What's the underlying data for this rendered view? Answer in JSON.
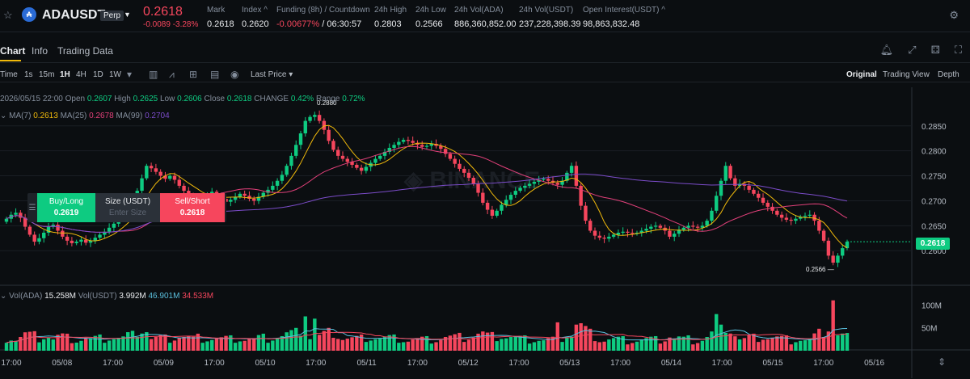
{
  "header": {
    "symbol": "ADAUSDT",
    "badge": "Perp",
    "price": "0.2618",
    "change": "-0.0089 -3.28%",
    "stats": [
      {
        "key": "Mark",
        "value": "0.2618"
      },
      {
        "key": "Index ^",
        "value": "0.2620"
      },
      {
        "key": "Funding (8h) / Countdown",
        "value_red": "-0.00677%",
        "value": "/ 06:30:57"
      },
      {
        "key": "24h High",
        "value": "0.2803"
      },
      {
        "key": "24h Low",
        "value": "0.2566"
      },
      {
        "key": "24h Vol(ADA)",
        "value": "886,360,852.00"
      },
      {
        "key": "24h Vol(USDT)",
        "value": "237,228,398.39"
      },
      {
        "key": "Open Interest(USDT) ^",
        "value": "98,863,832.48"
      }
    ]
  },
  "tabs": [
    "Chart",
    "Info",
    "Trading Data"
  ],
  "toolbar": {
    "intervals": [
      "Time",
      "1s",
      "15m",
      "1H",
      "4H",
      "1D",
      "1W"
    ],
    "active_interval": "1H",
    "price_type": "Last Price",
    "views": [
      "Original",
      "Trading View",
      "Depth"
    ]
  },
  "ohlc": {
    "date": "2026/05/15 22:00",
    "open_label": "Open",
    "open": "0.2607",
    "high_label": "High",
    "high": "0.2625",
    "low_label": "Low",
    "low": "0.2606",
    "close_label": "Close",
    "close": "0.2618",
    "change_label": "CHANGE",
    "change": "0.42%",
    "range_label": "Range",
    "range": "0.72%"
  },
  "ma": {
    "ma7_label": "MA(7)",
    "ma7": "0.2613",
    "ma25_label": "MA(25)",
    "ma25": "0.2678",
    "ma99_label": "MA(99)",
    "ma99": "0.2704"
  },
  "order": {
    "buy_label": "Buy/Long",
    "buy_price": "0.2619",
    "size_label": "Size (USDT)",
    "size_placeholder": "Enter Size",
    "sell_label": "Sell/Short",
    "sell_price": "0.2618"
  },
  "volume": {
    "vol_ada_label": "Vol(ADA)",
    "vol_ada": "15.258M",
    "vol_usdt_label": "Vol(USDT)",
    "vol_usdt": "3.992M",
    "ma_a": "46.901M",
    "ma_b": "34.533M"
  },
  "colors": {
    "up": "#0ecb81",
    "down": "#f6465d",
    "ma7": "#f0b90b",
    "ma25": "#e2407a",
    "ma99": "#7b4cc9",
    "volma": "#5bc0de"
  },
  "chart_data": {
    "type": "candlestick",
    "price_axis": {
      "ticks": [
        "0.2850",
        "0.2800",
        "0.2750",
        "0.2700",
        "0.2650",
        "0.2600"
      ],
      "min": 0.2555,
      "max": 0.2895
    },
    "volume_axis": {
      "ticks": [
        "100M",
        "50M"
      ],
      "max": 120
    },
    "time_ticks": [
      "17:00",
      "05/08",
      "17:00",
      "05/09",
      "17:00",
      "05/10",
      "17:00",
      "05/11",
      "17:00",
      "05/12",
      "17:00",
      "05/13",
      "17:00",
      "05/14",
      "17:00",
      "05/15",
      "17:00",
      "05/16"
    ],
    "high_marker": "0.2880",
    "low_marker": "0.2566",
    "last_price": "0.2618",
    "closes": [
      0.2664,
      0.2672,
      0.2676,
      0.2666,
      0.2648,
      0.2632,
      0.2618,
      0.2625,
      0.2636,
      0.2648,
      0.2652,
      0.264,
      0.2628,
      0.262,
      0.2615,
      0.2618,
      0.2622,
      0.2616,
      0.262,
      0.2626,
      0.2632,
      0.2638,
      0.2646,
      0.2654,
      0.2662,
      0.267,
      0.2685,
      0.27,
      0.272,
      0.2745,
      0.277,
      0.2765,
      0.2758,
      0.275,
      0.2744,
      0.275,
      0.2742,
      0.273,
      0.272,
      0.2712,
      0.2708,
      0.27,
      0.2706,
      0.2712,
      0.2718,
      0.271,
      0.2704,
      0.2698,
      0.2702,
      0.2708,
      0.2714,
      0.271,
      0.2704,
      0.27,
      0.2708,
      0.2716,
      0.2722,
      0.273,
      0.274,
      0.2752,
      0.277,
      0.279,
      0.2812,
      0.2835,
      0.286,
      0.2868,
      0.2872,
      0.286,
      0.2842,
      0.282,
      0.2802,
      0.279,
      0.2784,
      0.2778,
      0.2772,
      0.2766,
      0.276,
      0.2768,
      0.2776,
      0.2784,
      0.279,
      0.2798,
      0.2806,
      0.2812,
      0.2818,
      0.2822,
      0.282,
      0.2816,
      0.2812,
      0.2808,
      0.281,
      0.2814,
      0.281,
      0.2804,
      0.2794,
      0.2784,
      0.2774,
      0.2764,
      0.2756,
      0.2746,
      0.2734,
      0.2716,
      0.2696,
      0.2682,
      0.267,
      0.268,
      0.2692,
      0.2702,
      0.2712,
      0.272,
      0.2726,
      0.273,
      0.2734,
      0.2738,
      0.2742,
      0.2744,
      0.274,
      0.2736,
      0.2732,
      0.274,
      0.2756,
      0.277,
      0.273,
      0.269,
      0.266,
      0.264,
      0.263,
      0.2626,
      0.2624,
      0.2628,
      0.2632,
      0.2636,
      0.2638,
      0.2636,
      0.2634,
      0.2636,
      0.264,
      0.2644,
      0.2648,
      0.265,
      0.2646,
      0.264,
      0.2628,
      0.2634,
      0.2642,
      0.2646,
      0.265,
      0.2648,
      0.2646,
      0.265,
      0.266,
      0.268,
      0.271,
      0.274,
      0.277,
      0.2745,
      0.273,
      0.2734,
      0.273,
      0.2722,
      0.2714,
      0.2706,
      0.2696,
      0.2688,
      0.268,
      0.2672,
      0.2666,
      0.2662,
      0.266,
      0.2664,
      0.2668,
      0.267,
      0.2672,
      0.266,
      0.264,
      0.262,
      0.259,
      0.2576,
      0.259,
      0.2605,
      0.2618
    ]
  }
}
